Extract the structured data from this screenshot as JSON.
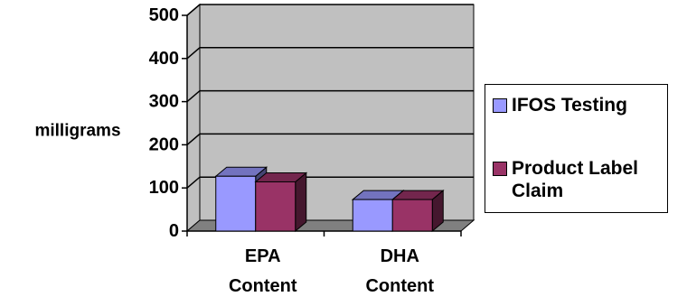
{
  "chart_data": {
    "type": "bar",
    "style": "3d-clustered-column",
    "title": "",
    "xlabel": "",
    "ylabel": "milligrams",
    "ylim": [
      0,
      500
    ],
    "yticks": [
      "0",
      "100",
      "200",
      "300",
      "400",
      "500"
    ],
    "grid": true,
    "legend_position": "right",
    "categories": [
      "EPA Content",
      "DHA Content"
    ],
    "category_lines": [
      [
        "EPA",
        "Content"
      ],
      [
        "DHA",
        "Content"
      ]
    ],
    "series": [
      {
        "name": "IFOS Testing",
        "values": [
          148,
          94
        ],
        "color": "#9999FF"
      },
      {
        "name": "Product Label Claim",
        "values": [
          135,
          94
        ],
        "color": "#993366"
      }
    ]
  },
  "colors": {
    "plot_wall": "#C0C0C0",
    "plot_floor": "#808080"
  }
}
